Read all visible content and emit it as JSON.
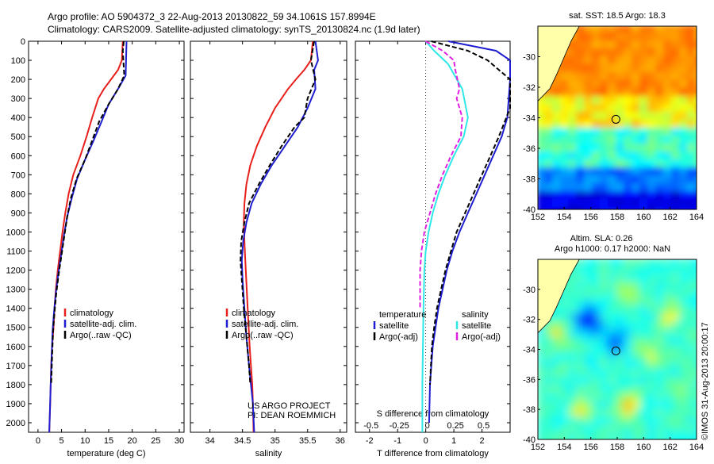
{
  "header": {
    "line1": "Argo profile: AO 5904372_3 22-Aug-2013 20130822_59 34.1061S 157.8994E",
    "line2": "Climatology: CARS2009. Satellite-adjusted climatology: synTS_20130824.nc (1.9d later)"
  },
  "credits": {
    "line1": "US ARGO PROJECT",
    "line2": "PI: DEAN ROEMMICH"
  },
  "watermark": "©IMOS 31-Aug-2013 20:00:17",
  "colors": {
    "climatology": "#e8201c",
    "satellite": "#1e1ed0",
    "argo": "#000000",
    "sat_salinity": "#2ee8e8",
    "argo_salinity": "#e020e0"
  },
  "chart_data": [
    {
      "type": "line",
      "name": "temperature",
      "xlabel": "temperature (deg C)",
      "xlim": [
        -2,
        31
      ],
      "ylim": [
        2050,
        0
      ],
      "xticks": [
        0,
        5,
        10,
        15,
        20,
        25,
        30
      ],
      "yticks": [
        0,
        100,
        200,
        300,
        400,
        500,
        600,
        700,
        800,
        900,
        1000,
        1100,
        1200,
        1300,
        1400,
        1500,
        1600,
        1700,
        1800,
        1900,
        2000
      ],
      "legend": {
        "placement": "lower-right",
        "entries": [
          "climatology",
          "satellite-adj. clim.",
          "Argo(..raw -QC)"
        ]
      },
      "series": [
        {
          "key": "climatology",
          "color": "#e8201c",
          "dash": false,
          "x": [
            18.0,
            17.8,
            17.0,
            15.5,
            14.0,
            12.8,
            11.5,
            10.3,
            9.0,
            7.5,
            6.5,
            5.8,
            5.2,
            4.7,
            4.2,
            3.8,
            3.5,
            3.3,
            3.0,
            2.8,
            2.6,
            2.4
          ],
          "y": [
            0,
            100,
            150,
            200,
            250,
            300,
            400,
            500,
            600,
            700,
            800,
            900,
            1000,
            1100,
            1200,
            1300,
            1400,
            1500,
            1600,
            1700,
            1900,
            2050
          ]
        },
        {
          "key": "satellite",
          "color": "#1e1ed0",
          "dash": false,
          "x": [
            18.8,
            18.7,
            18.6,
            17.0,
            15.0,
            13.5,
            11.8,
            10.0,
            8.3,
            7.2,
            6.2,
            5.5,
            4.9,
            4.3,
            3.8,
            3.4,
            3.1,
            2.9,
            2.7,
            2.4
          ],
          "y": [
            0,
            100,
            180,
            250,
            330,
            420,
            520,
            620,
            720,
            820,
            920,
            1020,
            1120,
            1220,
            1320,
            1420,
            1520,
            1650,
            1800,
            2050
          ]
        },
        {
          "key": "argo",
          "color": "#000000",
          "dash": true,
          "x": [
            18.2,
            18.0,
            18.3,
            17.0,
            15.0,
            13.0,
            11.5,
            10.0,
            8.2,
            7.0,
            6.2,
            5.6,
            5.0,
            4.4,
            3.9,
            3.5,
            3.2,
            3.0,
            2.8
          ],
          "y": [
            0,
            50,
            180,
            250,
            330,
            420,
            520,
            620,
            720,
            820,
            920,
            1020,
            1120,
            1220,
            1320,
            1420,
            1520,
            1650,
            1800
          ]
        }
      ]
    },
    {
      "type": "line",
      "name": "salinity",
      "xlabel": "salinity",
      "xlim": [
        33.7,
        36.1
      ],
      "ylim": [
        2050,
        0
      ],
      "xticks": [
        34,
        34.5,
        35,
        35.5,
        36
      ],
      "legend": {
        "placement": "lower-right",
        "entries": [
          "climatology",
          "satellite-adj. clim.",
          "Argo(..raw -QC)"
        ]
      },
      "series": [
        {
          "key": "climatology",
          "color": "#e8201c",
          "dash": false,
          "x": [
            35.58,
            35.55,
            35.45,
            35.32,
            35.2,
            35.0,
            34.85,
            34.72,
            34.62,
            34.56,
            34.53,
            34.52,
            34.53,
            34.55,
            34.58,
            34.61,
            34.63,
            34.65,
            34.66,
            34.67
          ],
          "y": [
            0,
            100,
            150,
            200,
            250,
            350,
            450,
            550,
            650,
            750,
            850,
            950,
            1050,
            1200,
            1400,
            1600,
            1700,
            1800,
            1900,
            2050
          ]
        },
        {
          "key": "satellite",
          "color": "#1e1ed0",
          "dash": false,
          "x": [
            35.62,
            35.66,
            35.6,
            35.62,
            35.5,
            35.35,
            35.15,
            34.95,
            34.78,
            34.64,
            34.56,
            34.51,
            34.49,
            34.5,
            34.53,
            34.56,
            34.6,
            34.63,
            34.66,
            34.68
          ],
          "y": [
            0,
            100,
            150,
            250,
            350,
            450,
            550,
            650,
            750,
            850,
            950,
            1050,
            1150,
            1250,
            1400,
            1550,
            1700,
            1800,
            1900,
            2050
          ]
        },
        {
          "key": "argo",
          "color": "#000000",
          "dash": true,
          "x": [
            35.6,
            35.55,
            35.62,
            35.5,
            35.45,
            35.3,
            35.1,
            34.92,
            34.75,
            34.6,
            34.53,
            34.48,
            34.47,
            34.49,
            34.52,
            34.56,
            34.6,
            34.62
          ],
          "y": [
            0,
            100,
            200,
            300,
            400,
            450,
            550,
            650,
            750,
            850,
            950,
            1050,
            1150,
            1250,
            1400,
            1550,
            1700,
            1800
          ]
        }
      ]
    },
    {
      "type": "line",
      "name": "difference",
      "xlabel": "T difference from climatology",
      "xlabel_secondary": "S difference from climatology",
      "xlim": [
        -2.5,
        3.0
      ],
      "ylim": [
        2050,
        0
      ],
      "xticks": [
        -2,
        -1,
        0,
        1,
        2
      ],
      "xticklabels": [
        "-2",
        "-1",
        "0",
        "1",
        "2"
      ],
      "xticks_secondary_labels": [
        "-0.5",
        "-0.25",
        "0",
        "0.25",
        "0.5"
      ],
      "xticks_secondary_positions": [
        -2,
        -1,
        0,
        1,
        2
      ],
      "legend_left": {
        "title": "temperature",
        "entries": [
          "satellite",
          "Argo(-adj)"
        ]
      },
      "legend_right": {
        "title": "salinity",
        "entries": [
          "satellite",
          "Argo(-adj)"
        ]
      },
      "series": [
        {
          "key": "sat_temp",
          "color": "#1e1ed0",
          "dash": false,
          "x": [
            0.8,
            2.5,
            3.0,
            3.0,
            2.9,
            2.7,
            2.4,
            2.1,
            1.8,
            1.5,
            1.2,
            0.95,
            0.75,
            0.6,
            0.45,
            0.35,
            0.25,
            0.2,
            0.15,
            0.12
          ],
          "y": [
            0,
            50,
            100,
            200,
            400,
            500,
            600,
            700,
            800,
            900,
            1000,
            1100,
            1200,
            1300,
            1400,
            1500,
            1600,
            1700,
            1800,
            2000
          ]
        },
        {
          "key": "argo_temp",
          "color": "#000000",
          "dash": true,
          "x": [
            0.2,
            1.5,
            2.2,
            3.0,
            3.0,
            2.6,
            2.3,
            2.0,
            1.7,
            1.4,
            1.1,
            0.9,
            0.7,
            0.55,
            0.4,
            0.3,
            0.22,
            0.15
          ],
          "y": [
            0,
            50,
            100,
            200,
            350,
            500,
            600,
            700,
            800,
            900,
            1000,
            1100,
            1200,
            1300,
            1400,
            1500,
            1600,
            1800
          ]
        },
        {
          "key": "sat_sal",
          "color": "#2ee8e8",
          "dash": false,
          "x": [
            0.0,
            0.3,
            0.8,
            1.3,
            1.5,
            1.35,
            1.0,
            0.7,
            0.45,
            0.25,
            0.1,
            0.0,
            -0.05,
            -0.08,
            -0.1,
            -0.12,
            -0.12,
            -0.12
          ],
          "y": [
            0,
            50,
            120,
            250,
            400,
            500,
            600,
            700,
            800,
            900,
            1000,
            1100,
            1200,
            1400,
            1600,
            1800,
            1900,
            2050
          ]
        },
        {
          "key": "argo_sal",
          "color": "#e020e0",
          "dash": true,
          "x": [
            0.0,
            0.6,
            1.0,
            1.05,
            1.2,
            1.1,
            1.3,
            1.25,
            0.9,
            0.6,
            0.35,
            0.15,
            -0.05,
            -0.15,
            -0.2,
            -0.2
          ],
          "y": [
            0,
            50,
            100,
            150,
            250,
            300,
            400,
            500,
            600,
            700,
            800,
            900,
            1000,
            1100,
            1200,
            1400
          ]
        }
      ]
    },
    {
      "type": "heatmap",
      "name": "sst_map",
      "title": "sat. SST: 18.5 Argo: 18.3",
      "xlim": [
        152,
        164
      ],
      "ylim": [
        -40,
        -28
      ],
      "xticks": [
        152,
        154,
        156,
        158,
        160,
        162,
        164
      ],
      "yticks": [
        -30,
        -32,
        -34,
        -36,
        -38,
        -40
      ],
      "marker": {
        "lon": 157.9,
        "lat": -34.1
      }
    },
    {
      "type": "heatmap",
      "name": "sla_map",
      "title": "Altim. SLA: 0.26",
      "subtitle": "Argo h1000: 0.17 h2000: NaN",
      "xlim": [
        152,
        164
      ],
      "ylim": [
        -40,
        -28
      ],
      "xticks": [
        152,
        154,
        156,
        158,
        160,
        162,
        164
      ],
      "yticks": [
        -30,
        -32,
        -34,
        -36,
        -38,
        -40
      ],
      "marker": {
        "lon": 157.9,
        "lat": -34.1
      }
    }
  ]
}
